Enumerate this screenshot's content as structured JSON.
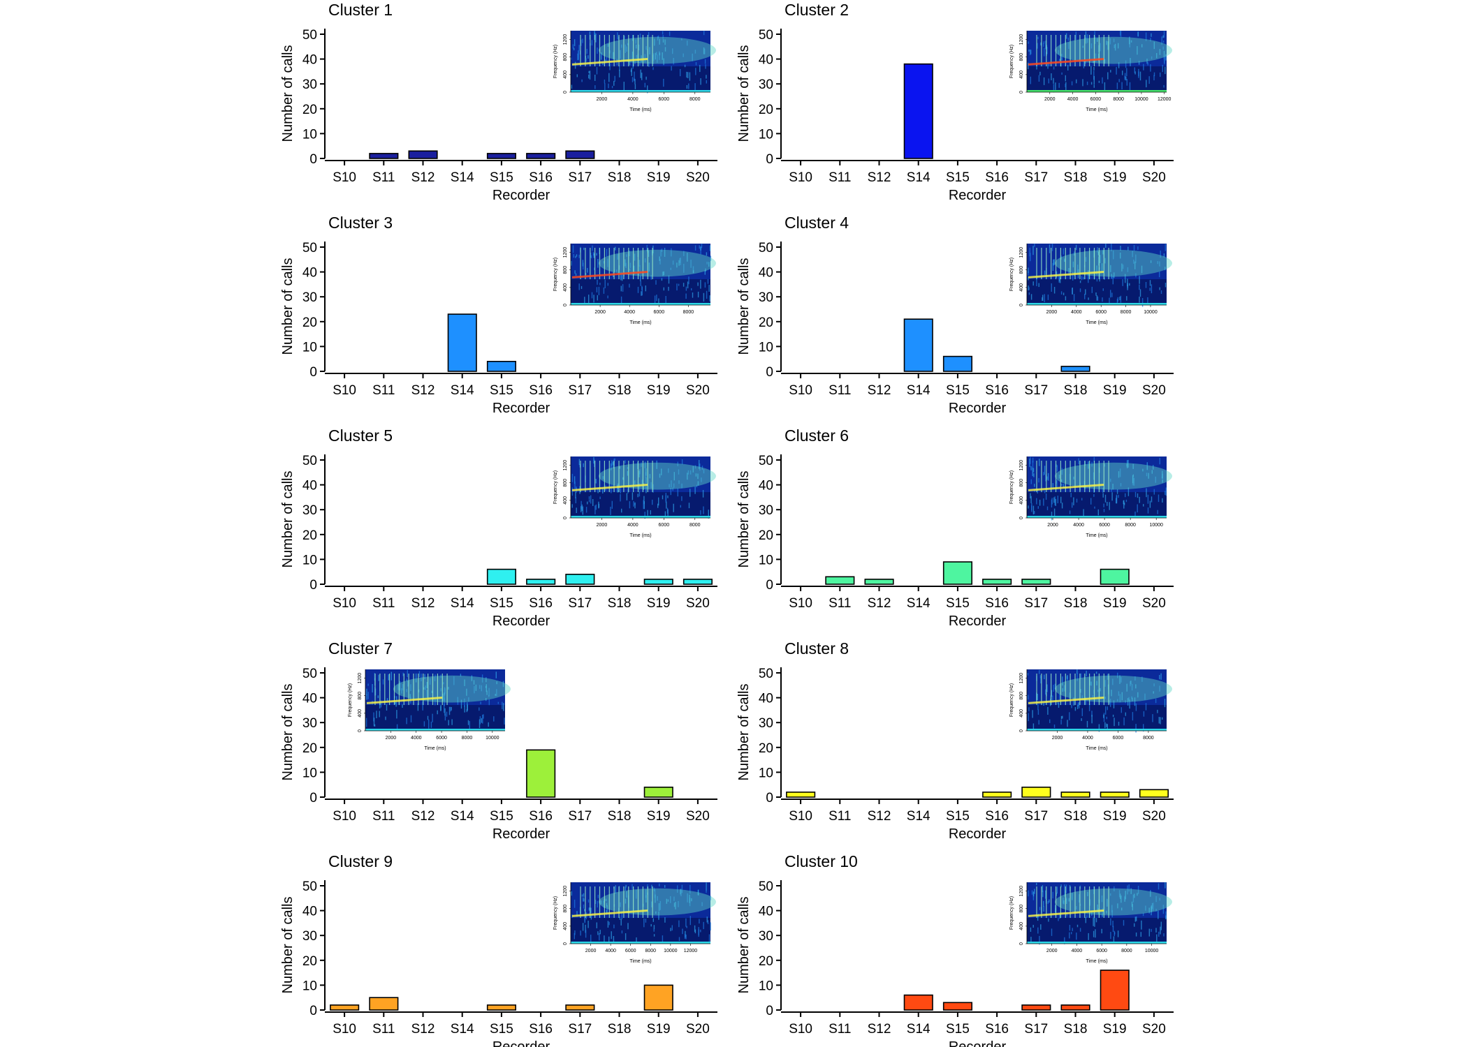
{
  "chart_data": {
    "categories": [
      "S10",
      "S11",
      "S12",
      "S14",
      "S15",
      "S16",
      "S17",
      "S18",
      "S19",
      "S20"
    ],
    "xlabel": "Recorder",
    "ylabel": "Number of calls",
    "ylim": [
      0,
      50
    ],
    "yticks": [
      0,
      10,
      20,
      30,
      40,
      50
    ],
    "inset_labels": {
      "xlabel": "Time (ms)",
      "ylabel": "Frequency (Hz)",
      "yticks": [
        0,
        400,
        800,
        1200
      ]
    },
    "panels": [
      {
        "type": "bar",
        "title": "Cluster 1",
        "color": "#1a1f9e",
        "values": [
          0,
          2,
          3,
          0,
          2,
          2,
          3,
          0,
          0,
          0
        ],
        "inset": {
          "position": "top-right",
          "xticks": [
            2000,
            4000,
            6000,
            8000
          ],
          "xmax": 9000
        }
      },
      {
        "type": "bar",
        "title": "Cluster 2",
        "color": "#0a14f0",
        "values": [
          0,
          0,
          0,
          38,
          0,
          0,
          0,
          0,
          0,
          0
        ],
        "inset": {
          "position": "top-right",
          "xticks": [
            2000,
            4000,
            6000,
            8000,
            10000,
            12000
          ],
          "xmax": 12200
        }
      },
      {
        "type": "bar",
        "title": "Cluster 3",
        "color": "#1e90ff",
        "values": [
          0,
          0,
          0,
          23,
          4,
          0,
          0,
          0,
          0,
          0
        ],
        "inset": {
          "position": "top-right",
          "xticks": [
            2000,
            4000,
            6000,
            8000
          ],
          "xmax": 9500
        }
      },
      {
        "type": "bar",
        "title": "Cluster 4",
        "color": "#1e90ff",
        "values": [
          0,
          0,
          0,
          21,
          6,
          0,
          0,
          2,
          0,
          0
        ],
        "inset": {
          "position": "top-right",
          "xticks": [
            2000,
            4000,
            6000,
            8000,
            10000
          ],
          "xmax": 11300
        }
      },
      {
        "type": "bar",
        "title": "Cluster 5",
        "color": "#2ff0f0",
        "values": [
          0,
          0,
          0,
          0,
          6,
          2,
          4,
          0,
          2,
          2
        ],
        "inset": {
          "position": "top-right",
          "xticks": [
            2000,
            4000,
            6000,
            8000
          ],
          "xmax": 9000
        }
      },
      {
        "type": "bar",
        "title": "Cluster 6",
        "color": "#4ef5a0",
        "values": [
          0,
          3,
          2,
          0,
          9,
          2,
          2,
          0,
          6,
          0
        ],
        "inset": {
          "position": "top-right",
          "xticks": [
            2000,
            4000,
            6000,
            8000,
            10000
          ],
          "xmax": 10800
        }
      },
      {
        "type": "bar",
        "title": "Cluster 7",
        "color": "#9df03a",
        "values": [
          0,
          0,
          0,
          0,
          0,
          19,
          0,
          0,
          4,
          0
        ],
        "inset": {
          "position": "top-left",
          "xticks": [
            2000,
            4000,
            6000,
            8000,
            10000
          ],
          "xmax": 11000
        }
      },
      {
        "type": "bar",
        "title": "Cluster 8",
        "color": "#ffff1e",
        "values": [
          2,
          0,
          0,
          0,
          0,
          2,
          4,
          2,
          2,
          3
        ],
        "inset": {
          "position": "top-right",
          "xticks": [
            2000,
            4000,
            6000,
            8000
          ],
          "xmax": 9200
        }
      },
      {
        "type": "bar",
        "title": "Cluster 9",
        "color": "#ffa323",
        "values": [
          2,
          5,
          0,
          0,
          2,
          0,
          2,
          0,
          10,
          0
        ],
        "inset": {
          "position": "top-right",
          "xticks": [
            2000,
            4000,
            6000,
            8000,
            10000,
            12000
          ],
          "xmax": 14000
        }
      },
      {
        "type": "bar",
        "title": "Cluster 10",
        "color": "#ff4a12",
        "values": [
          0,
          0,
          0,
          6,
          3,
          0,
          2,
          2,
          16,
          0
        ],
        "inset": {
          "position": "top-right",
          "xticks": [
            2000,
            4000,
            6000,
            8000,
            10000
          ],
          "xmax": 11200
        }
      }
    ]
  }
}
